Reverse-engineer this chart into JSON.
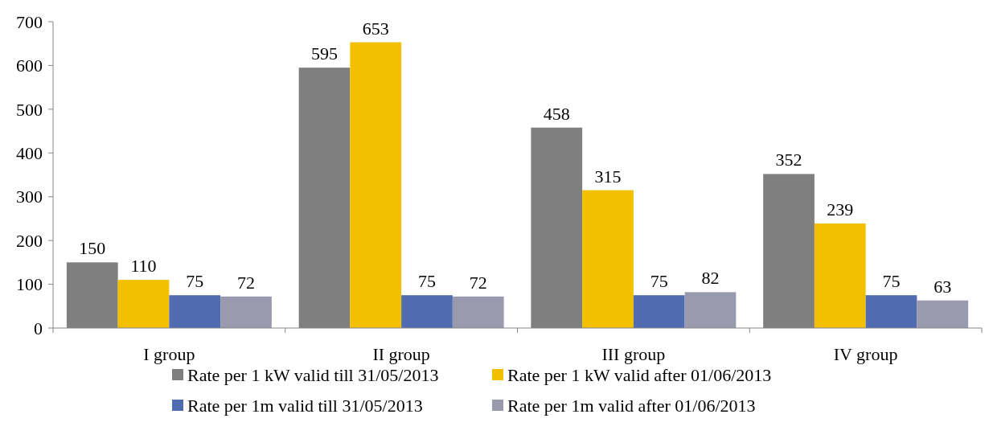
{
  "chart_data": {
    "type": "bar",
    "categories": [
      "I group",
      "II group",
      "III group",
      "IV group"
    ],
    "series": [
      {
        "name": "Rate per 1 kW valid till 31/05/2013",
        "color": "#7f7f7f",
        "values": [
          150,
          595,
          458,
          352
        ]
      },
      {
        "name": "Rate per 1 kW valid after 01/06/2013",
        "color": "#f2c000",
        "values": [
          110,
          653,
          315,
          239
        ]
      },
      {
        "name": "Rate per 1m valid till 31/05/2013",
        "color": "#506bb0",
        "values": [
          75,
          75,
          75,
          75
        ]
      },
      {
        "name": "Rate per 1m valid after 01/06/2013",
        "color": "#9a9aae",
        "values": [
          72,
          72,
          82,
          63
        ]
      }
    ],
    "ylim": [
      0,
      700
    ],
    "yticks": [
      0,
      100,
      200,
      300,
      400,
      500,
      600,
      700
    ],
    "data_labels": true,
    "legend": "bottom",
    "grid": false
  }
}
